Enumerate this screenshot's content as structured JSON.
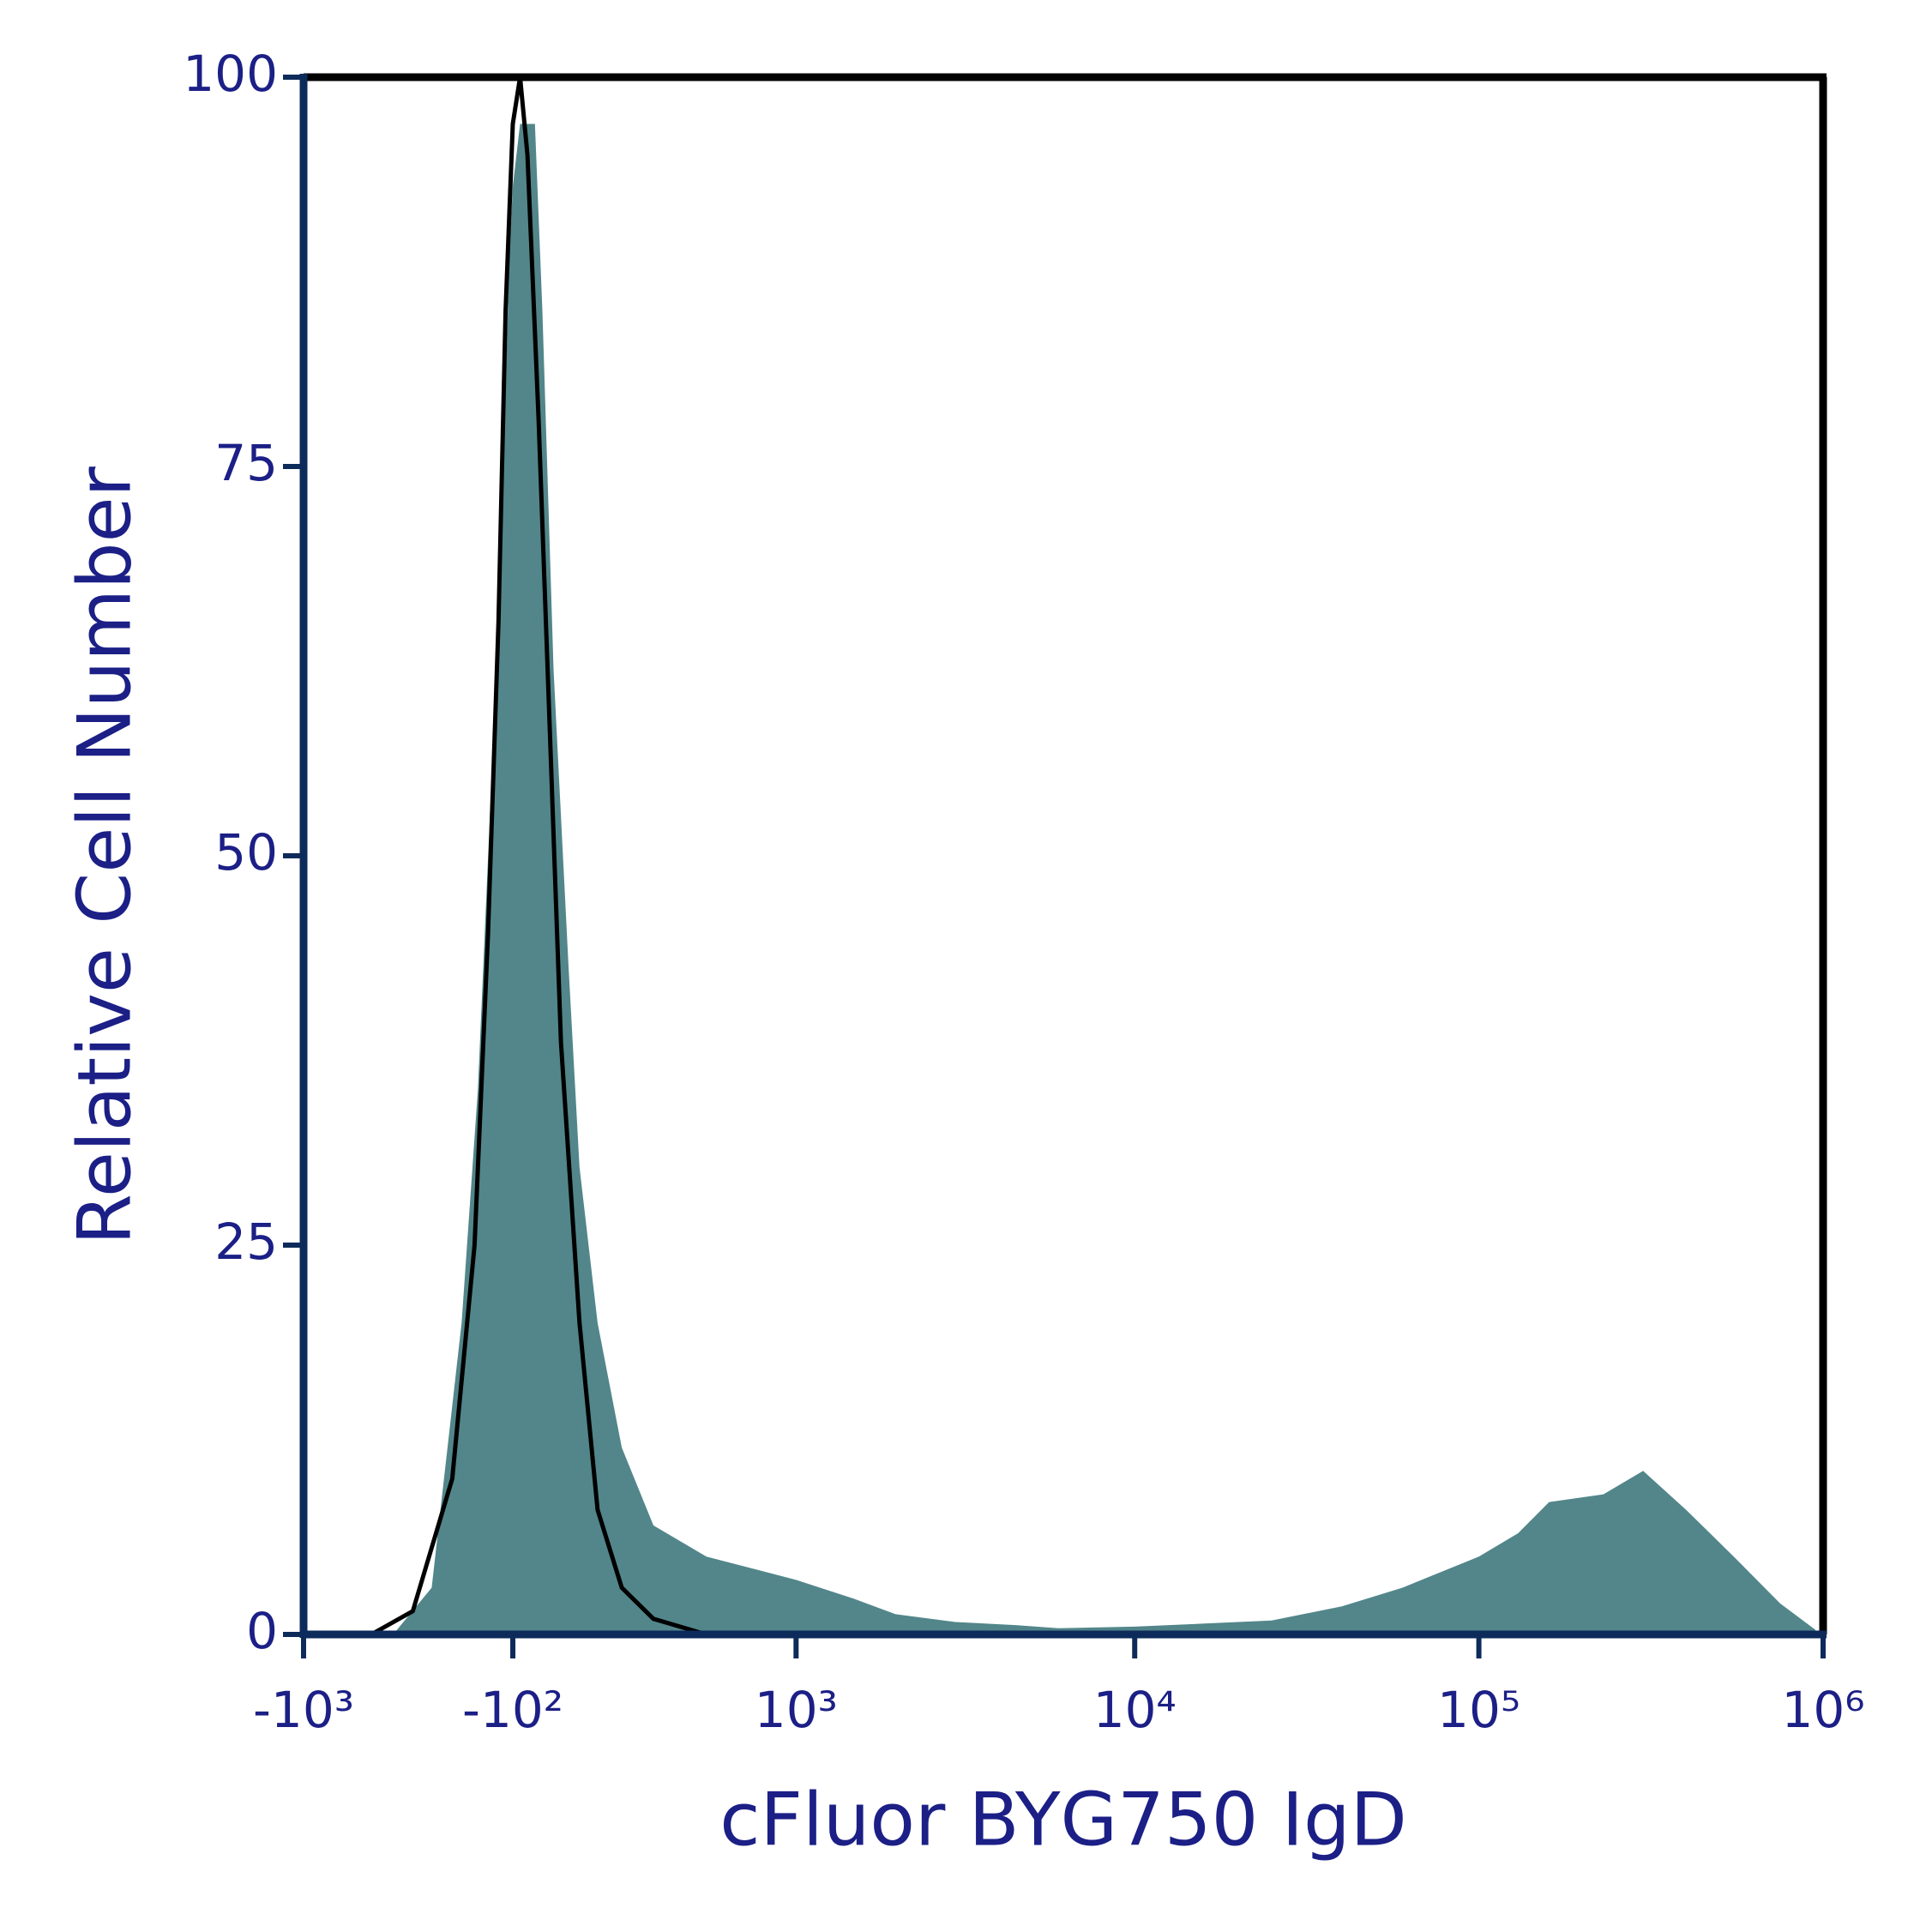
{
  "chart_data": {
    "type": "area",
    "x_label": "cFluor BYG750 IgD",
    "y_label": "Relative Cell Number",
    "xscale": "biexponential",
    "xlim": [
      -1000,
      1000000
    ],
    "ylim": [
      0,
      100
    ],
    "xticks": [
      {
        "value": -1000,
        "label": "-10³"
      },
      {
        "value": -100,
        "label": "-10²"
      },
      {
        "value": 1000,
        "label": "10³"
      },
      {
        "value": 10000,
        "label": "10⁴"
      },
      {
        "value": 100000,
        "label": "10⁵"
      },
      {
        "value": 1000000,
        "label": "10⁶"
      }
    ],
    "yticks": [
      0,
      25,
      50,
      75,
      100
    ],
    "series": [
      {
        "color": "#52868a",
        "filled": true,
        "x": [
          -500,
          -350,
          -250,
          -200,
          -160,
          -130,
          -110,
          -100,
          -80,
          -40,
          -20,
          10,
          50,
          80,
          130,
          200,
          300,
          500,
          1000,
          1500,
          2000,
          3000,
          4500,
          6000,
          10000,
          16000,
          25000,
          40000,
          60000,
          100000,
          130000,
          160000,
          230000,
          300000,
          400000,
          550000,
          750000,
          950000
        ],
        "values": [
          0,
          3,
          20,
          35,
          55,
          72,
          88,
          93,
          97,
          97,
          85,
          62,
          43,
          30,
          20,
          12,
          7,
          5,
          3.5,
          2.3,
          1.3,
          0.8,
          0.6,
          0.4,
          0.5,
          0.7,
          0.9,
          1.8,
          3,
          5,
          6.5,
          8.5,
          9,
          10.5,
          8,
          5,
          2,
          0.3
        ]
      },
      {
        "color": "#000000",
        "filled": false,
        "x": [
          -600,
          -420,
          -280,
          -210,
          -170,
          -140,
          -120,
          -100,
          -80,
          -60,
          -30,
          0,
          30,
          80,
          130,
          200,
          300,
          500
        ],
        "values": [
          0,
          1.5,
          10,
          25,
          45,
          65,
          85,
          97,
          100,
          95,
          78,
          58,
          38,
          20,
          8,
          3,
          1,
          0
        ]
      }
    ]
  }
}
